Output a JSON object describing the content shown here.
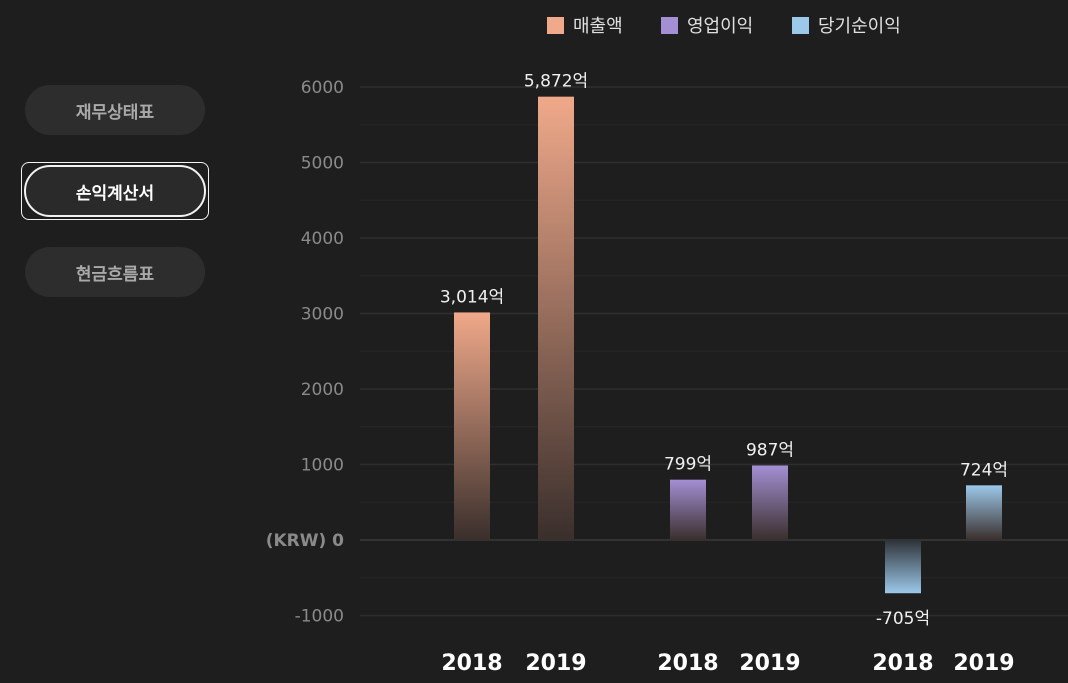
{
  "tabs": [
    {
      "label": "재무상태표",
      "active": false
    },
    {
      "label": "손익계산서",
      "active": true
    },
    {
      "label": "현금흐름표",
      "active": false
    }
  ],
  "colors": {
    "revenue": "#f0a98a",
    "operating": "#a48fd4",
    "net": "#9cc8ea",
    "background": "#1e1e1e"
  },
  "chart_data": {
    "type": "bar",
    "legend": [
      "매출액",
      "영업이익",
      "당기순이익"
    ],
    "legend_position": "top-right",
    "y_unit_label": "(KRW) 0",
    "yticks": [
      6000,
      5000,
      4000,
      3000,
      2000,
      1000,
      -1000
    ],
    "ylim": [
      -1300,
      6000
    ],
    "grid": true,
    "series": [
      {
        "name": "매출액",
        "x": [
          "2018",
          "2019"
        ],
        "values": [
          3014,
          5872
        ],
        "labels": [
          "3,014억",
          "5,872억"
        ]
      },
      {
        "name": "영업이익",
        "x": [
          "2018",
          "2019"
        ],
        "values": [
          799,
          987
        ],
        "labels": [
          "799억",
          "987억"
        ]
      },
      {
        "name": "당기순이익",
        "x": [
          "2018",
          "2019"
        ],
        "values": [
          -705,
          724
        ],
        "labels": [
          "-705억",
          "724억"
        ]
      }
    ]
  }
}
